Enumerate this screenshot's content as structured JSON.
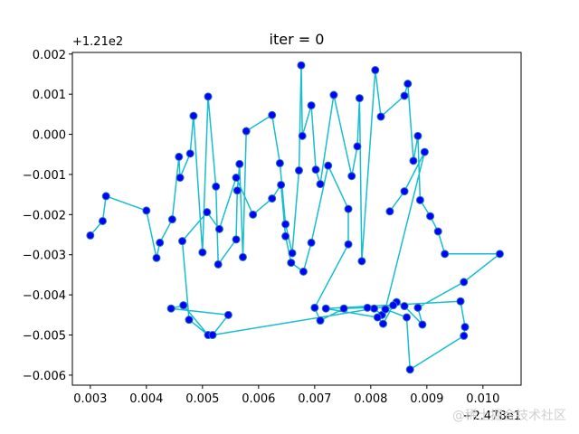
{
  "chart_data": {
    "type": "line",
    "title": "iter = 0",
    "x_offset_label": "+2.478e1",
    "y_offset_label": "+1.21e2",
    "xlim": [
      0.00268,
      0.01068
    ],
    "ylim": [
      -0.00625,
      0.00204
    ],
    "x_ticks": [
      0.003,
      0.004,
      0.005,
      0.006,
      0.007,
      0.008,
      0.009,
      0.01
    ],
    "x_tick_labels": [
      "0.003",
      "0.004",
      "0.005",
      "0.006",
      "0.007",
      "0.008",
      "0.009",
      "0.010"
    ],
    "y_ticks": [
      0.002,
      0.001,
      0.0,
      -0.001,
      -0.002,
      -0.003,
      -0.004,
      -0.005,
      -0.006
    ],
    "y_tick_labels": [
      "0.002",
      "0.001",
      "0.000",
      "−0.001",
      "−0.002",
      "−0.003",
      "−0.004",
      "−0.005",
      "−0.006"
    ],
    "grid": false,
    "line_color": "#17becf",
    "marker_face_color": "#0000ff",
    "marker_edge_color": "#1f77b4",
    "series": [
      {
        "x": [
          0.003,
          0.00322,
          0.00328,
          0.004,
          0.00418,
          0.00424,
          0.00446,
          0.00458,
          0.0046,
          0.00478,
          0.00484,
          0.005,
          0.0051,
          0.00524,
          0.00528,
          0.0056,
          0.00562,
          0.00566,
          0.00572,
          0.00578,
          0.00624,
          0.00638,
          0.00648,
          0.0066,
          0.00672,
          0.00676,
          0.00678,
          0.00694,
          0.00702,
          0.0071,
          0.00734,
          0.00766,
          0.00776,
          0.0078,
          0.00784,
          0.00808,
          0.00818,
          0.0086,
          0.00866,
          0.00876,
          0.00884,
          0.00888,
          0.00906,
          0.0092,
          0.00932,
          0.0103,
          0.00966,
          0.00884,
          0.00892,
          0.0086,
          0.00846,
          0.0082,
          0.00806,
          0.00794,
          0.00752,
          0.0071,
          0.007,
          0.0076,
          0.0076,
          0.00724,
          0.00694,
          0.0068,
          0.00658,
          0.00648,
          0.0064,
          0.00624,
          0.0059,
          0.0056,
          0.0053,
          0.00508,
          0.00464,
          0.00476,
          0.0051,
          0.00466,
          0.00444,
          0.00546,
          0.00518,
          0.0084,
          0.00822,
          0.00812,
          0.0072,
          0.0096,
          0.00968,
          0.00966,
          0.0087,
          0.00864,
          0.00826,
          0.00896,
          0.0086,
          0.00834
        ],
        "y": [
          -0.00252,
          -0.00216,
          -0.00154,
          -0.0019,
          -0.00308,
          -0.0027,
          -0.00212,
          -0.00056,
          -0.00108,
          -0.00048,
          0.00046,
          -0.00294,
          0.00094,
          -0.0013,
          -0.00324,
          -0.00262,
          -0.0014,
          -0.00074,
          -0.00306,
          8e-05,
          0.00048,
          -0.00072,
          -0.00224,
          -0.00296,
          -0.0009,
          0.00172,
          -4e-05,
          0.00072,
          -0.00088,
          -0.00124,
          0.00098,
          -0.00104,
          -0.0003,
          0.0009,
          -0.00316,
          0.0016,
          0.00044,
          0.00096,
          0.00126,
          -0.00066,
          -4e-05,
          -0.00164,
          -0.00204,
          -0.00242,
          -0.00298,
          -0.00298,
          -0.00368,
          -0.00432,
          -0.00474,
          -0.00428,
          -0.00418,
          -0.0045,
          -0.00434,
          -0.00432,
          -0.00434,
          -0.00464,
          -0.00432,
          -0.00274,
          -0.00186,
          -0.00078,
          -0.0027,
          -0.00342,
          -0.0032,
          -0.00254,
          -0.00126,
          -0.0016,
          -0.002,
          -0.00108,
          -0.00236,
          -0.00194,
          -0.00266,
          -0.00462,
          -0.005,
          -0.00426,
          -0.00434,
          -0.0045,
          -0.005,
          -0.00426,
          -0.00472,
          -0.00456,
          -0.00434,
          -0.00416,
          -0.0048,
          -0.00502,
          -0.00586,
          -0.00456,
          -0.00436,
          -0.00044,
          -0.00142,
          -0.00192
        ]
      }
    ]
  },
  "watermark_text": "@稀土掘金技术社区"
}
